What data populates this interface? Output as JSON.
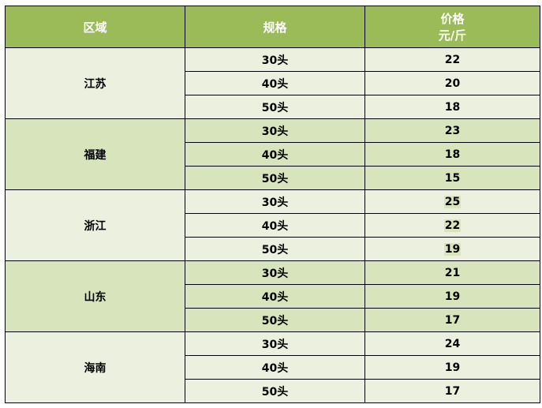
{
  "header": {
    "region": "区域",
    "spec": "规格",
    "price_line1": "价格",
    "price_line2": "元/斤"
  },
  "groups": [
    {
      "region": "江苏",
      "rows": [
        {
          "spec": "30头",
          "price": "22"
        },
        {
          "spec": "40头",
          "price": "20"
        },
        {
          "spec": "50头",
          "price": "18"
        }
      ]
    },
    {
      "region": "福建",
      "rows": [
        {
          "spec": "30头",
          "price": "23"
        },
        {
          "spec": "40头",
          "price": "18"
        },
        {
          "spec": "50头",
          "price": "15"
        }
      ]
    },
    {
      "region": "浙江",
      "rows": [
        {
          "spec": "30头",
          "price": "25"
        },
        {
          "spec": "40头",
          "price": "22"
        },
        {
          "spec": "50头",
          "price": "19"
        }
      ],
      "highlight": true
    },
    {
      "region": "山东",
      "rows": [
        {
          "spec": "30头",
          "price": "21"
        },
        {
          "spec": "40头",
          "price": "19"
        },
        {
          "spec": "50头",
          "price": "17"
        }
      ]
    },
    {
      "region": "海南",
      "rows": [
        {
          "spec": "30头",
          "price": "24"
        },
        {
          "spec": "40头",
          "price": "19"
        },
        {
          "spec": "50头",
          "price": "17"
        }
      ]
    }
  ],
  "colors": {
    "header": "#9BBB59",
    "row_light": "#EBF1DE",
    "row_dark": "#D8E4BC"
  }
}
